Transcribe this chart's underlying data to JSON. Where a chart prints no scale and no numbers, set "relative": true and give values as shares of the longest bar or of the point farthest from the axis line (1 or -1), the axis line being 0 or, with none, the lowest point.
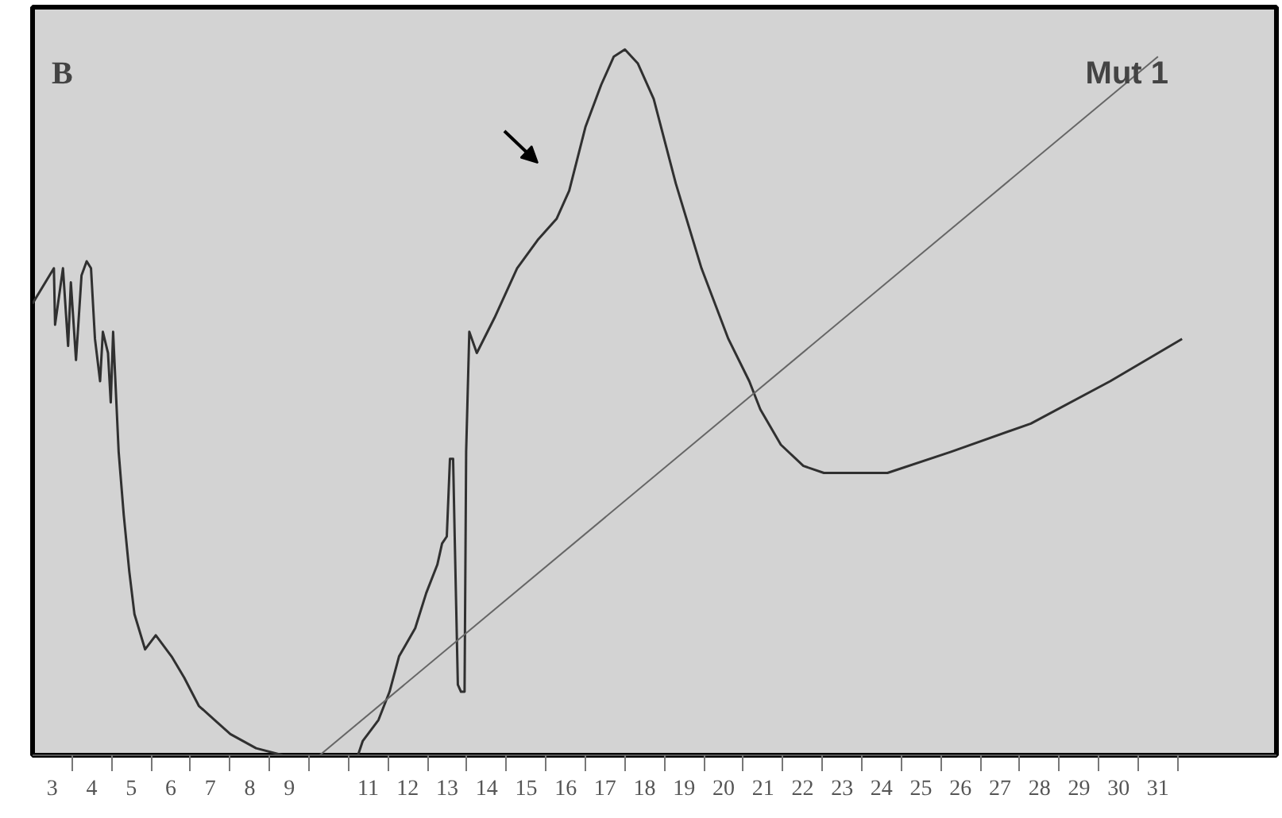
{
  "chart_data": {
    "type": "line",
    "relative": true,
    "annotations": [
      "B",
      "Mut 1"
    ],
    "xlim": [
      2.5,
      34
    ],
    "xticks": [
      {
        "value": 3,
        "label": "3"
      },
      {
        "value": 4,
        "label": "4"
      },
      {
        "value": 5,
        "label": "5"
      },
      {
        "value": 6,
        "label": "6"
      },
      {
        "value": 7,
        "label": "7"
      },
      {
        "value": 8,
        "label": "8"
      },
      {
        "value": 9,
        "label": "9"
      },
      {
        "value": 11,
        "label": "11"
      },
      {
        "value": 12,
        "label": "12"
      },
      {
        "value": 13,
        "label": "13"
      },
      {
        "value": 14,
        "label": "14"
      },
      {
        "value": 15,
        "label": "15"
      },
      {
        "value": 16,
        "label": "16"
      },
      {
        "value": 17,
        "label": "17"
      },
      {
        "value": 18,
        "label": "18"
      },
      {
        "value": 19,
        "label": "19"
      },
      {
        "value": 20,
        "label": "20"
      },
      {
        "value": 21,
        "label": "21"
      },
      {
        "value": 22,
        "label": "22"
      },
      {
        "value": 23,
        "label": "23"
      },
      {
        "value": 24,
        "label": "24"
      },
      {
        "value": 25,
        "label": "25"
      },
      {
        "value": 26,
        "label": "26"
      },
      {
        "value": 27,
        "label": "27"
      },
      {
        "value": 28,
        "label": "28"
      },
      {
        "value": 29,
        "label": "29"
      },
      {
        "value": 30,
        "label": "30"
      },
      {
        "value": 31,
        "label": "31"
      },
      {
        "value": 3.5,
        "label": null
      },
      {
        "value": 4.5,
        "label": null
      },
      {
        "value": 5.5,
        "label": null
      },
      {
        "value": 6.5,
        "label": null
      },
      {
        "value": 7.5,
        "label": null
      },
      {
        "value": 8.5,
        "label": null
      },
      {
        "value": 9.5,
        "label": null
      },
      {
        "value": 10.5,
        "label": null
      },
      {
        "value": 11.5,
        "label": null
      },
      {
        "value": 12.5,
        "label": null
      },
      {
        "value": 13.5,
        "label": null
      },
      {
        "value": 14.5,
        "label": null
      },
      {
        "value": 15.5,
        "label": null
      },
      {
        "value": 16.5,
        "label": null
      },
      {
        "value": 17.5,
        "label": null
      },
      {
        "value": 18.5,
        "label": null
      },
      {
        "value": 19.5,
        "label": null
      },
      {
        "value": 20.5,
        "label": null
      },
      {
        "value": 21.5,
        "label": null
      },
      {
        "value": 22.5,
        "label": null
      },
      {
        "value": 23.5,
        "label": null
      },
      {
        "value": 24.5,
        "label": null
      },
      {
        "value": 25.5,
        "label": null
      },
      {
        "value": 26.5,
        "label": null
      },
      {
        "value": 27.5,
        "label": null
      },
      {
        "value": 28.5,
        "label": null
      },
      {
        "value": 29.5,
        "label": null
      },
      {
        "value": 30.5,
        "label": null
      },
      {
        "value": 31.5,
        "label": null
      }
    ],
    "marker": "none",
    "line_style": "solid",
    "series": [
      {
        "color": "#303030",
        "x": [
          2.5,
          3.04,
          3.07,
          3.27,
          3.4,
          3.47,
          3.6,
          3.74,
          3.87,
          3.98,
          4.08,
          4.21,
          4.28,
          4.41,
          4.48,
          4.54,
          4.68,
          4.81,
          4.95,
          5.08,
          5.35,
          5.62,
          6.02,
          6.34,
          6.71,
          7.11,
          7.51,
          8.16,
          8.84,
          9.77,
          10.74,
          10.86,
          11.26,
          11.54,
          11.78,
          12.19,
          12.47,
          12.75,
          12.87,
          12.99,
          13.07,
          13.15,
          13.19,
          13.27,
          13.35,
          13.44,
          13.48,
          13.56,
          13.75,
          14.2,
          14.77,
          15.29,
          15.77,
          16.09,
          16.5,
          16.9,
          17.22,
          17.5,
          17.83,
          18.23,
          18.79,
          19.44,
          20.12,
          20.65,
          20.93,
          21.45,
          22.02,
          22.54,
          23.35,
          24.15,
          25.76,
          27.78,
          29.79,
          31.61
        ],
        "values": [
          0.64,
          0.69,
          0.61,
          0.69,
          0.58,
          0.67,
          0.56,
          0.68,
          0.7,
          0.69,
          0.59,
          0.53,
          0.6,
          0.57,
          0.5,
          0.6,
          0.43,
          0.34,
          0.26,
          0.2,
          0.15,
          0.17,
          0.14,
          0.11,
          0.07,
          0.05,
          0.03,
          0.01,
          0.0,
          0.0,
          0.0,
          0.02,
          0.05,
          0.09,
          0.14,
          0.18,
          0.23,
          0.27,
          0.3,
          0.31,
          0.42,
          0.42,
          0.31,
          0.1,
          0.09,
          0.09,
          0.43,
          0.6,
          0.57,
          0.62,
          0.69,
          0.73,
          0.76,
          0.8,
          0.89,
          0.95,
          0.99,
          1.0,
          0.98,
          0.93,
          0.81,
          0.69,
          0.59,
          0.53,
          0.49,
          0.44,
          0.41,
          0.4,
          0.4,
          0.4,
          0.43,
          0.47,
          0.53,
          0.59
        ]
      },
      {
        "color": "#666666",
        "x": [
          9.77,
          31.0
        ],
        "values": [
          0.0,
          0.99
        ]
      }
    ]
  }
}
